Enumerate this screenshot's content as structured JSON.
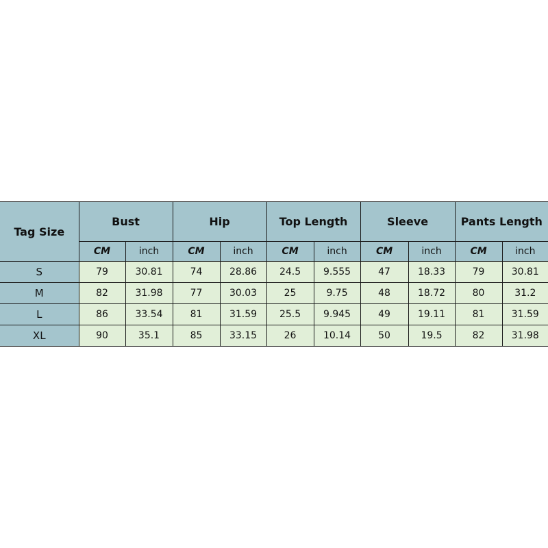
{
  "table": {
    "tag_size_label": "Tag Size",
    "groups": [
      "Bust",
      "Hip",
      "Top Length",
      "Sleeve",
      "Pants Length"
    ],
    "units": [
      "CM",
      "inch"
    ],
    "rows": [
      {
        "size": "S",
        "values": [
          "79",
          "30.81",
          "74",
          "28.86",
          "24.5",
          "9.555",
          "47",
          "18.33",
          "79",
          "30.81"
        ]
      },
      {
        "size": "M",
        "values": [
          "82",
          "31.98",
          "77",
          "30.03",
          "25",
          "9.75",
          "48",
          "18.72",
          "80",
          "31.2"
        ]
      },
      {
        "size": "L",
        "values": [
          "86",
          "33.54",
          "81",
          "31.59",
          "25.5",
          "9.945",
          "49",
          "19.11",
          "81",
          "31.59"
        ]
      },
      {
        "size": "XL",
        "values": [
          "90",
          "35.1",
          "85",
          "33.15",
          "26",
          "10.14",
          "50",
          "19.5",
          "82",
          "31.98"
        ]
      }
    ],
    "colors": {
      "header": "#a4c5cd",
      "cell": "#e1efd8"
    }
  }
}
